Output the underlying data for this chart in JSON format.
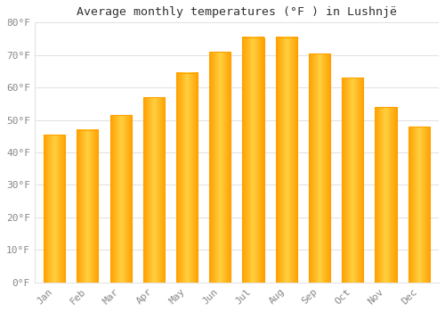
{
  "title": "Average monthly temperatures (°F ) in Lushnjë",
  "months": [
    "Jan",
    "Feb",
    "Mar",
    "Apr",
    "May",
    "Jun",
    "Jul",
    "Aug",
    "Sep",
    "Oct",
    "Nov",
    "Dec"
  ],
  "values": [
    45.5,
    47,
    51.5,
    57,
    64.5,
    71,
    75.5,
    75.5,
    70.5,
    63,
    54,
    48
  ],
  "bar_color_center": "#FFD54F",
  "bar_color_edge": "#FFA000",
  "background_color": "#FFFFFF",
  "grid_color": "#E0E0E0",
  "tick_label_color": "#888888",
  "title_color": "#333333",
  "ylim": [
    0,
    80
  ],
  "yticks": [
    0,
    10,
    20,
    30,
    40,
    50,
    60,
    70,
    80
  ],
  "ytick_labels": [
    "0°F",
    "10°F",
    "20°F",
    "30°F",
    "40°F",
    "50°F",
    "60°F",
    "70°F",
    "80°F"
  ],
  "bar_width": 0.65
}
